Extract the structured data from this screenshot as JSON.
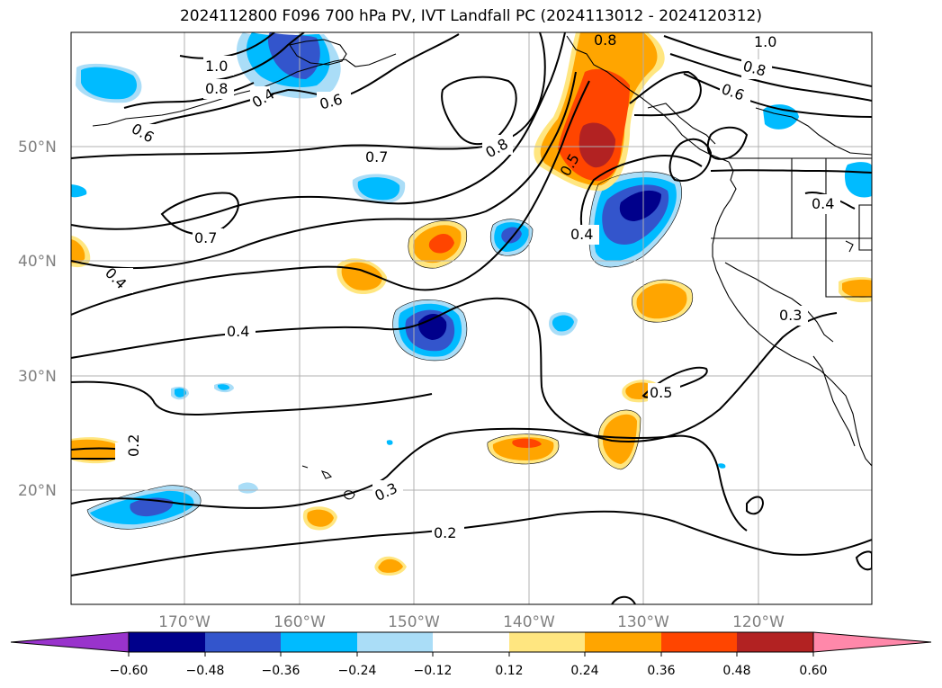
{
  "title": "2024112800 F096 700 hPa PV, IVT Landfall PC (2024113012 - 2024120312)",
  "colors": {
    "neg": [
      "#9933cc",
      "#00008b",
      "#3355cc",
      "#00bbff",
      "#aaddf7"
    ],
    "pos": [
      "#ffe680",
      "#ffa500",
      "#ff4500",
      "#b22222",
      "#ff88aa"
    ],
    "contour": "#000000",
    "grid": "#b0b0b0",
    "axis_label": "#808080"
  },
  "map": {
    "lon_ticks": [
      "170°W",
      "160°W",
      "150°W",
      "140°W",
      "130°W",
      "120°W"
    ],
    "lat_ticks": [
      "50°N",
      "40°N",
      "30°N",
      "20°N"
    ],
    "contour_labels": [
      "1.0",
      "0.8",
      "0.6",
      "0.7",
      "0.5",
      "0.4",
      "0.3",
      "0.2"
    ]
  },
  "colorbar": {
    "ticks": [
      "−0.60",
      "−0.48",
      "−0.36",
      "−0.24",
      "−0.12",
      "0.12",
      "0.24",
      "0.36",
      "0.48",
      "0.60"
    ]
  }
}
